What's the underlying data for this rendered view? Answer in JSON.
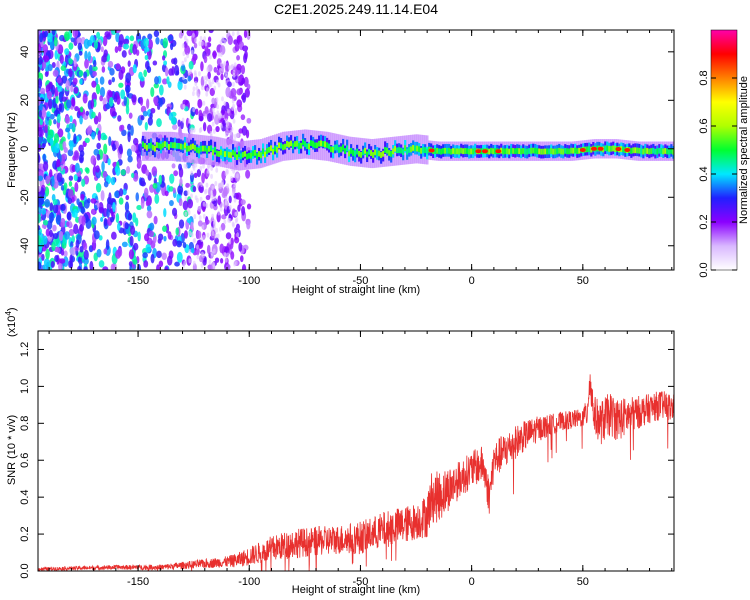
{
  "chart_data": [
    {
      "type": "heatmap",
      "title": "C2E1.2025.249.11.14.E04",
      "xlabel": "Height of straight line (km)",
      "ylabel": "Frequency (Hz)",
      "xlim": [
        -195,
        91
      ],
      "ylim": [
        -50,
        49
      ],
      "x_ticks": [
        -150,
        -100,
        -50,
        0,
        50
      ],
      "x_tick_labels": [
        "-150",
        "-100",
        "-50",
        "0",
        "50"
      ],
      "y_ticks": [
        -40,
        -20,
        0,
        20,
        40
      ],
      "y_tick_labels": [
        "-40",
        "-20",
        "0",
        "20",
        "40"
      ],
      "colorbar": {
        "label": "Normalized spectral amplitude",
        "range": [
          0.0,
          1.0
        ],
        "ticks": [
          0.0,
          0.2,
          0.4,
          0.6,
          0.8
        ],
        "tick_labels": [
          "0.0",
          "0.2",
          "0.4",
          "0.6",
          "0.8"
        ],
        "colors": [
          "#ffffff",
          "#d9b8ff",
          "#8b00ff",
          "#2020ff",
          "#00e8ff",
          "#00ff30",
          "#b0ff00",
          "#ffff00",
          "#ff8000",
          "#ff0000",
          "#ff00aa"
        ]
      },
      "band_center_line": {
        "x": [
          -145,
          -135,
          -125,
          -115,
          -105,
          -95,
          -85,
          -75,
          -65,
          -55,
          -45,
          -35,
          -25,
          -15,
          -5,
          5,
          15,
          25,
          35,
          45,
          55,
          65,
          75,
          85,
          90
        ],
        "y": [
          1,
          1,
          0,
          -1,
          -3,
          -2,
          1,
          2,
          1,
          -1,
          -2,
          -1,
          0,
          -1,
          -1,
          -1,
          -1,
          -1,
          -1,
          -1,
          0,
          0,
          -1,
          -1,
          -1
        ]
      },
      "hotspots_x": [
        -18,
        3,
        6,
        12,
        50,
        55,
        58,
        66,
        70
      ]
    },
    {
      "type": "line",
      "title": "",
      "xlabel": "Height of straight line (km)",
      "ylabel": "SNR (10 * v/v)",
      "y_multiplier_label": "(x10",
      "y_multiplier_exp": "4",
      "y_multiplier_close": ")",
      "xlim": [
        -195,
        91
      ],
      "ylim": [
        0,
        1.3
      ],
      "x_ticks": [
        -150,
        -100,
        -50,
        0,
        50
      ],
      "x_tick_labels": [
        "-150",
        "-100",
        "-50",
        "0",
        "50"
      ],
      "y_ticks": [
        0.0,
        0.2,
        0.4,
        0.6,
        0.8,
        1.0,
        1.2
      ],
      "y_tick_labels": [
        "0.0",
        "0.2",
        "0.4",
        "0.6",
        "0.8",
        "1.0",
        "1.2"
      ],
      "series": [
        {
          "name": "SNR",
          "color": "#e8302e",
          "x": [
            -195,
            -180,
            -160,
            -140,
            -130,
            -120,
            -110,
            -105,
            -100,
            -95,
            -90,
            -80,
            -70,
            -60,
            -50,
            -45,
            -40,
            -35,
            -30,
            -25,
            -20,
            -18,
            -15,
            -10,
            -5,
            0,
            5,
            8,
            10,
            15,
            20,
            25,
            30,
            35,
            40,
            45,
            50,
            52,
            53,
            55,
            58,
            62,
            66,
            70,
            75,
            80,
            85,
            91
          ],
          "y": [
            0.01,
            0.015,
            0.02,
            0.02,
            0.03,
            0.04,
            0.05,
            0.06,
            0.08,
            0.1,
            0.12,
            0.15,
            0.16,
            0.17,
            0.18,
            0.2,
            0.22,
            0.24,
            0.25,
            0.27,
            0.3,
            0.4,
            0.4,
            0.45,
            0.5,
            0.55,
            0.58,
            0.4,
            0.6,
            0.65,
            0.7,
            0.74,
            0.77,
            0.79,
            0.81,
            0.82,
            0.83,
            0.86,
            1.05,
            0.85,
            0.8,
            0.85,
            0.82,
            0.84,
            0.86,
            0.88,
            0.9,
            0.88
          ],
          "noise": [
            0.01,
            0.01,
            0.012,
            0.015,
            0.02,
            0.025,
            0.03,
            0.04,
            0.05,
            0.06,
            0.07,
            0.08,
            0.08,
            0.08,
            0.09,
            0.09,
            0.1,
            0.1,
            0.1,
            0.1,
            0.12,
            0.14,
            0.14,
            0.12,
            0.1,
            0.1,
            0.1,
            0.1,
            0.1,
            0.1,
            0.09,
            0.08,
            0.07,
            0.06,
            0.05,
            0.05,
            0.05,
            0.08,
            0.12,
            0.1,
            0.12,
            0.12,
            0.12,
            0.1,
            0.09,
            0.08,
            0.08,
            0.08
          ]
        }
      ]
    }
  ]
}
